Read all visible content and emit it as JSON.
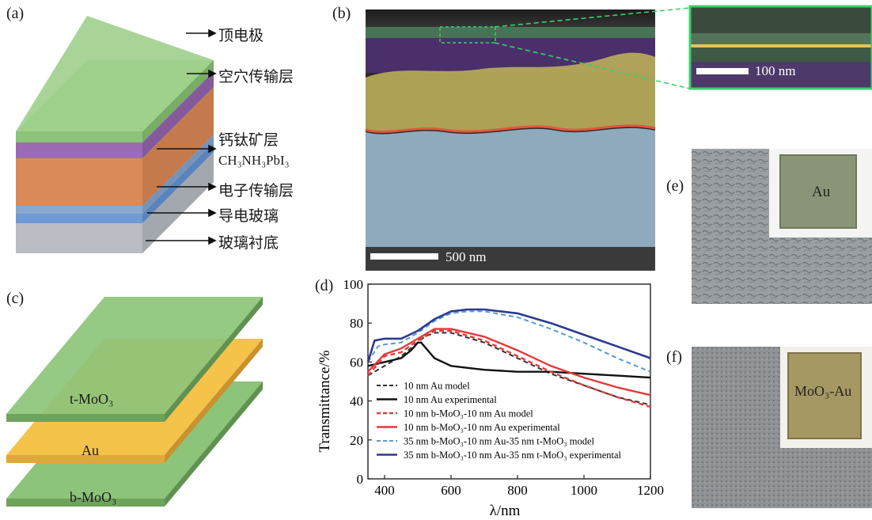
{
  "panels": {
    "a": "(a)",
    "b": "(b)",
    "c": "(c)",
    "d": "(d)",
    "e": "(e)",
    "f": "(f)"
  },
  "device_a": {
    "labels": [
      "顶电极",
      "空穴传输层",
      "钙钛矿层",
      "电子传输层",
      "导电玻璃",
      "玻璃衬底"
    ],
    "perovskite_formula": "CH₃NH₃PbI₃",
    "colors": {
      "top": "#8cc47a",
      "htl": "#9b6cb2",
      "perovskite": "#d98a58",
      "etl": "#6f9ad6",
      "ito": "#9ab0c8",
      "glass": "#b9bcc2"
    }
  },
  "sem_b": {
    "scale_main": "500 nm",
    "scale_inset": "100 nm"
  },
  "electrode_c": {
    "labels": [
      "t-MoO₃",
      "Au",
      "b-MoO₃"
    ],
    "colors": {
      "moo3": "#8cc47a",
      "au": "#f5c24a"
    }
  },
  "photos": {
    "e_label": "Au",
    "f_label": "MoO₃-Au"
  },
  "chart_data": {
    "type": "line",
    "xlabel": "λ/nm",
    "ylabel": "Transmittance/%",
    "xlim": [
      350,
      1200
    ],
    "ylim": [
      0,
      100
    ],
    "xticks": [
      400,
      600,
      800,
      1000,
      1200
    ],
    "yticks": [
      0,
      20,
      40,
      60,
      80,
      100
    ],
    "legend_position": "bottom-center",
    "series": [
      {
        "name": "10 nm Au model",
        "color": "#333333",
        "dash": "6,4",
        "width": 2,
        "x": [
          350,
          400,
          450,
          500,
          520,
          550,
          600,
          700,
          800,
          900,
          1000,
          1100,
          1200
        ],
        "y": [
          53,
          58,
          63,
          70,
          73,
          75,
          75,
          70,
          62,
          54,
          48,
          42,
          38
        ]
      },
      {
        "name": "10 nm Au experimental",
        "color": "#111111",
        "dash": "",
        "width": 2.4,
        "x": [
          350,
          400,
          450,
          480,
          500,
          510,
          530,
          550,
          600,
          650,
          700,
          800,
          900,
          1000,
          1100,
          1200
        ],
        "y": [
          58,
          60,
          62,
          66,
          70,
          70,
          66,
          62,
          58,
          57,
          56,
          55,
          55,
          54,
          53,
          52
        ]
      },
      {
        "name": "10 nm b-MoO₃-10 nm Au model",
        "color": "#e23a3a",
        "dash": "6,4",
        "width": 2.4,
        "x": [
          350,
          400,
          450,
          500,
          550,
          600,
          700,
          800,
          900,
          1000,
          1100,
          1200
        ],
        "y": [
          53,
          63,
          65,
          71,
          76,
          76,
          71,
          63,
          55,
          48,
          42,
          37
        ]
      },
      {
        "name": "10 nm b-MoO₃-10 nm Au experimental",
        "color": "#e23a3a",
        "dash": "",
        "width": 2.4,
        "x": [
          350,
          400,
          450,
          500,
          550,
          600,
          700,
          800,
          900,
          1000,
          1100,
          1200
        ],
        "y": [
          55,
          64,
          67,
          72,
          77,
          77,
          73,
          66,
          58,
          52,
          47,
          43
        ]
      },
      {
        "name": "35 nm b-MoO₃-10 nm Au-35 nm t-MoO₃ model",
        "color": "#5a9ad0",
        "dash": "6,4",
        "width": 2,
        "x": [
          350,
          380,
          400,
          450,
          500,
          550,
          600,
          650,
          700,
          800,
          900,
          1000,
          1100,
          1200
        ],
        "y": [
          60,
          68,
          69,
          70,
          75,
          81,
          85,
          86,
          86,
          83,
          77,
          70,
          62,
          55
        ]
      },
      {
        "name": "35 nm b-MoO₃-10 nm Au-35 nm t-MoO₃ experimental",
        "color": "#2b3a8f",
        "dash": "",
        "width": 2.6,
        "x": [
          350,
          370,
          400,
          450,
          500,
          550,
          600,
          650,
          700,
          800,
          900,
          1000,
          1100,
          1200
        ],
        "y": [
          60,
          71,
          72,
          72,
          76,
          82,
          86,
          87,
          87,
          85,
          80,
          74,
          68,
          62
        ]
      }
    ]
  }
}
